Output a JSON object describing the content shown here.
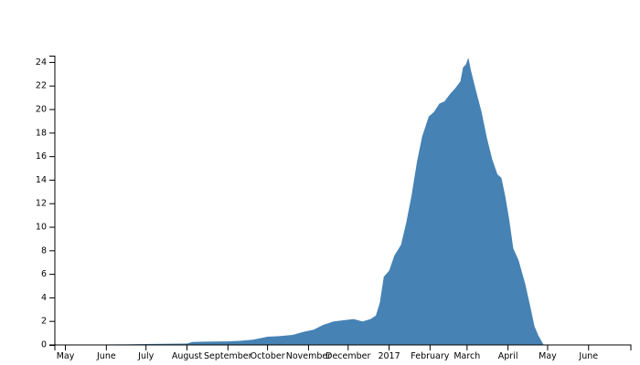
{
  "chart_data": {
    "type": "area",
    "title": "",
    "xlabel": "",
    "ylabel": "",
    "ylim": [
      0,
      24.5
    ],
    "xlim": [
      "2016-04-23",
      "2017-07-03"
    ],
    "x_tick_labels": [
      {
        "date": "2016-05-01",
        "label": "May"
      },
      {
        "date": "2016-06-01",
        "label": "June"
      },
      {
        "date": "2016-07-01",
        "label": "July"
      },
      {
        "date": "2016-08-01",
        "label": "August"
      },
      {
        "date": "2016-09-01",
        "label": "September"
      },
      {
        "date": "2016-10-01",
        "label": "October"
      },
      {
        "date": "2016-11-01",
        "label": "November"
      },
      {
        "date": "2016-12-01",
        "label": "December"
      },
      {
        "date": "2017-01-01",
        "label": "2017"
      },
      {
        "date": "2017-02-01",
        "label": "February"
      },
      {
        "date": "2017-03-01",
        "label": "March"
      },
      {
        "date": "2017-04-01",
        "label": "April"
      },
      {
        "date": "2017-05-01",
        "label": "May"
      },
      {
        "date": "2017-06-01",
        "label": "June"
      }
    ],
    "y_ticks": [
      0,
      2,
      4,
      6,
      8,
      10,
      12,
      14,
      16,
      18,
      20,
      22,
      24
    ],
    "grid": false,
    "legend": "none",
    "series": [
      {
        "color": "#4682b4",
        "points": [
          [
            "2016-05-01",
            0
          ],
          [
            "2016-05-15",
            0.02
          ],
          [
            "2016-06-01",
            0.04
          ],
          [
            "2016-06-15",
            0.05
          ],
          [
            "2016-07-01",
            0.08
          ],
          [
            "2016-07-15",
            0.1
          ],
          [
            "2016-08-01",
            0.12
          ],
          [
            "2016-08-05",
            0.25
          ],
          [
            "2016-08-15",
            0.28
          ],
          [
            "2016-09-01",
            0.3
          ],
          [
            "2016-09-10",
            0.35
          ],
          [
            "2016-09-20",
            0.45
          ],
          [
            "2016-10-01",
            0.7
          ],
          [
            "2016-10-10",
            0.75
          ],
          [
            "2016-10-20",
            0.85
          ],
          [
            "2016-10-28",
            1.1
          ],
          [
            "2016-11-05",
            1.3
          ],
          [
            "2016-11-12",
            1.7
          ],
          [
            "2016-11-20",
            2.0
          ],
          [
            "2016-11-28",
            2.1
          ],
          [
            "2016-12-05",
            2.2
          ],
          [
            "2016-12-12",
            2.0
          ],
          [
            "2016-12-18",
            2.2
          ],
          [
            "2016-12-22",
            2.5
          ],
          [
            "2016-12-25",
            3.6
          ],
          [
            "2016-12-28",
            5.8
          ],
          [
            "2017-01-01",
            6.3
          ],
          [
            "2017-01-05",
            7.6
          ],
          [
            "2017-01-10",
            8.5
          ],
          [
            "2017-01-14",
            10.4
          ],
          [
            "2017-01-18",
            12.7
          ],
          [
            "2017-01-22",
            15.5
          ],
          [
            "2017-01-26",
            17.7
          ],
          [
            "2017-01-31",
            19.4
          ],
          [
            "2017-02-04",
            19.8
          ],
          [
            "2017-02-08",
            20.5
          ],
          [
            "2017-02-12",
            20.7
          ],
          [
            "2017-02-16",
            21.3
          ],
          [
            "2017-02-20",
            21.8
          ],
          [
            "2017-02-24",
            22.4
          ],
          [
            "2017-02-26",
            23.6
          ],
          [
            "2017-02-28",
            23.8
          ],
          [
            "2017-03-02",
            24.4
          ],
          [
            "2017-03-04",
            23.3
          ],
          [
            "2017-03-08",
            21.5
          ],
          [
            "2017-03-12",
            19.8
          ],
          [
            "2017-03-16",
            17.6
          ],
          [
            "2017-03-20",
            15.8
          ],
          [
            "2017-03-24",
            14.5
          ],
          [
            "2017-03-27",
            14.2
          ],
          [
            "2017-03-30",
            12.6
          ],
          [
            "2017-04-02",
            10.6
          ],
          [
            "2017-04-05",
            8.2
          ],
          [
            "2017-04-09",
            7.2
          ],
          [
            "2017-04-14",
            5.2
          ],
          [
            "2017-04-18",
            3.2
          ],
          [
            "2017-04-21",
            1.6
          ],
          [
            "2017-04-24",
            0.8
          ],
          [
            "2017-04-28",
            0
          ]
        ]
      }
    ]
  }
}
